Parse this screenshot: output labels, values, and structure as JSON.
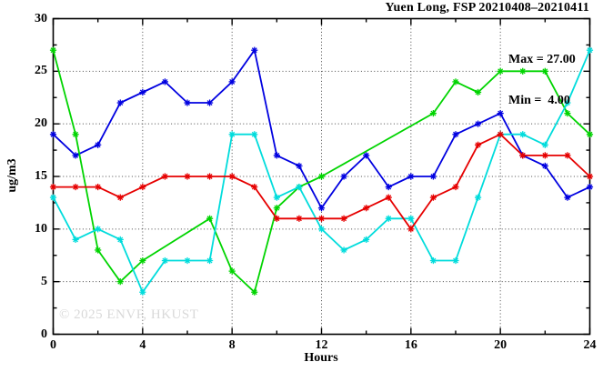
{
  "title": "Yuen Long, FSP 20210408–20210411",
  "annotation": {
    "max_label": "Max = 27.00",
    "min_label": "Min =  4.00"
  },
  "watermark": "© 2025 ENVF, HKUST",
  "chart_data": {
    "type": "line",
    "title": "Yuen Long, FSP 20210408–20210411",
    "xlabel": "Hours",
    "ylabel": "ug/m3",
    "xlim": [
      0,
      24
    ],
    "ylim": [
      0,
      30
    ],
    "x_ticks": [
      0,
      4,
      8,
      12,
      16,
      20,
      24
    ],
    "x_minor_ticks": [
      2,
      6,
      10,
      14,
      18,
      22
    ],
    "y_ticks": [
      0,
      5,
      10,
      15,
      20,
      25,
      30
    ],
    "y_minor_ticks": [
      2.5,
      7.5,
      12.5,
      17.5,
      22.5,
      27.5
    ],
    "grid": true,
    "legend": "none",
    "stats": {
      "max": 27.0,
      "min": 4.0
    },
    "x": [
      0,
      1,
      2,
      3,
      4,
      5,
      6,
      7,
      8,
      9,
      10,
      11,
      12,
      13,
      14,
      15,
      16,
      17,
      18,
      19,
      20,
      21,
      22,
      23,
      24
    ],
    "series": [
      {
        "name": "blue",
        "color": "#0000e0",
        "values": [
          19,
          17,
          18,
          22,
          23,
          24,
          22,
          22,
          24,
          27,
          17,
          16,
          12,
          15,
          17,
          14,
          15,
          15,
          19,
          20,
          21,
          17,
          16,
          13,
          14
        ]
      },
      {
        "name": "green",
        "color": "#00d400",
        "values": [
          27,
          19,
          8,
          5,
          7,
          null,
          null,
          11,
          6,
          4,
          12,
          14,
          15,
          null,
          null,
          null,
          null,
          21,
          24,
          23,
          25,
          25,
          25,
          21,
          19
        ]
      },
      {
        "name": "cyan",
        "color": "#00dcdc",
        "values": [
          13,
          9,
          10,
          9,
          4,
          7,
          7,
          7,
          19,
          19,
          13,
          14,
          10,
          8,
          9,
          11,
          11,
          7,
          7,
          13,
          19,
          19,
          18,
          22,
          27
        ]
      },
      {
        "name": "red",
        "color": "#e60000",
        "values": [
          14,
          14,
          14,
          13,
          14,
          15,
          15,
          15,
          15,
          14,
          11,
          11,
          11,
          11,
          12,
          13,
          10,
          13,
          14,
          18,
          19,
          17,
          17,
          17,
          15
        ]
      }
    ]
  }
}
